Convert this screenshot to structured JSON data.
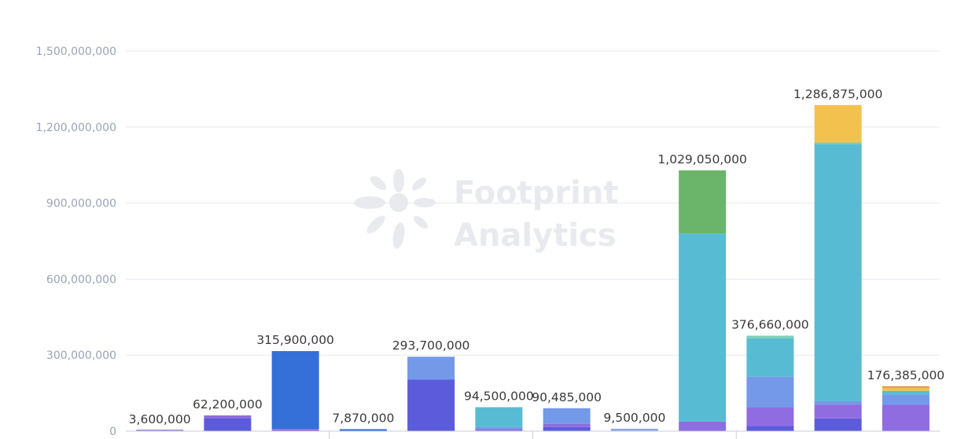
{
  "chart_data": {
    "type": "bar",
    "stacked": true,
    "ylim": [
      0,
      1500000000
    ],
    "yticks": [
      0,
      300000000,
      600000000,
      900000000,
      1200000000,
      1500000000
    ],
    "ytick_labels": [
      "0",
      "300,000,000",
      "600,000,000",
      "900,000,000",
      "1,200,000,000",
      "1,500,000,000"
    ],
    "grid": true,
    "group_dividers_after": [
      2,
      5,
      8
    ],
    "bars": [
      {
        "total_label": "3,600,000",
        "segments": [
          {
            "value": 3600000,
            "color": "#9b8be6"
          }
        ]
      },
      {
        "total_label": "62,200,000",
        "segments": [
          {
            "value": 52000000,
            "color": "#5b5bdc"
          },
          {
            "value": 10200000,
            "color": "#8f6ce0"
          }
        ]
      },
      {
        "total_label": "315,900,000",
        "segments": [
          {
            "value": 9000000,
            "color": "#8f6ce0"
          },
          {
            "value": 306900000,
            "color": "#356fd8"
          }
        ]
      },
      {
        "total_label": "7,870,000",
        "segments": [
          {
            "value": 7870000,
            "color": "#356fd8"
          }
        ]
      },
      {
        "total_label": "293,700,000",
        "segments": [
          {
            "value": 203000000,
            "color": "#5b5bdc"
          },
          {
            "value": 90700000,
            "color": "#7399e8"
          }
        ]
      },
      {
        "total_label": "94,500,000",
        "segments": [
          {
            "value": 8000000,
            "color": "#8f6ce0"
          },
          {
            "value": 8000000,
            "color": "#7399e8"
          },
          {
            "value": 78500000,
            "color": "#57bcd3"
          }
        ]
      },
      {
        "total_label": "90,485,000",
        "segments": [
          {
            "value": 16000000,
            "color": "#5b5bdc"
          },
          {
            "value": 13000000,
            "color": "#8f6ce0"
          },
          {
            "value": 61485000,
            "color": "#7399e8"
          }
        ]
      },
      {
        "total_label": "9,500,000",
        "segments": [
          {
            "value": 9500000,
            "color": "#8fa6ee"
          }
        ]
      },
      {
        "total_label": "1,029,050,000",
        "segments": [
          {
            "value": 38000000,
            "color": "#8f6ce0"
          },
          {
            "value": 742000000,
            "color": "#57bcd3"
          },
          {
            "value": 249050000,
            "color": "#6ab56a"
          }
        ]
      },
      {
        "total_label": "376,660,000",
        "segments": [
          {
            "value": 20000000,
            "color": "#5b5bdc"
          },
          {
            "value": 75000000,
            "color": "#8f6ce0"
          },
          {
            "value": 120000000,
            "color": "#7399e8"
          },
          {
            "value": 151660000,
            "color": "#57bcd3"
          },
          {
            "value": 10000000,
            "color": "#79cfb7"
          }
        ]
      },
      {
        "total_label": "1,286,875,000",
        "segments": [
          {
            "value": 50000000,
            "color": "#5b5bdc"
          },
          {
            "value": 55000000,
            "color": "#8f6ce0"
          },
          {
            "value": 14000000,
            "color": "#7399e8"
          },
          {
            "value": 1014000000,
            "color": "#57bcd3"
          },
          {
            "value": 6000000,
            "color": "#79cfb7"
          },
          {
            "value": 147875000,
            "color": "#f2c14e"
          }
        ]
      },
      {
        "total_label": "176,385,000",
        "segments": [
          {
            "value": 105000000,
            "color": "#8f6ce0"
          },
          {
            "value": 40000000,
            "color": "#7399e8"
          },
          {
            "value": 14000000,
            "color": "#57bcd3"
          },
          {
            "value": 12000000,
            "color": "#f2c14e"
          },
          {
            "value": 5385000,
            "color": "#e9895a"
          }
        ]
      }
    ]
  },
  "watermark": {
    "line1": "Footprint",
    "line2": "Analytics"
  },
  "colors": {
    "grid": "#e6e8ee",
    "axis": "#c9ccd4",
    "tick_text": "#9aa3b5",
    "label_text": "#3a3a3a",
    "watermark": "#e8eaee"
  }
}
